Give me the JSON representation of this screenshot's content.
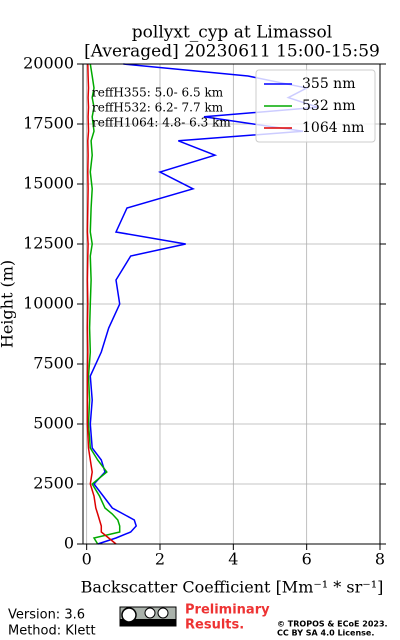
{
  "chart_data": {
    "type": "profile",
    "title": "pollyxt_cyp at Limassol",
    "subtitle": "[Averaged] 20230611 15:00-15:59",
    "xlabel": "Backscatter Coefficient [Mm⁻¹ * sr⁻¹]",
    "ylabel": "Height (m)",
    "y": [
      0,
      250,
      500,
      750,
      1000,
      1250,
      1500,
      2000,
      2500,
      3000,
      3500,
      4000,
      5000,
      6000,
      7000,
      8000,
      9000,
      10000,
      11000,
      12000,
      12500,
      13000,
      14000,
      14800,
      15500,
      16200,
      16800,
      17200,
      17800,
      18200,
      18600,
      19000,
      19500,
      20000
    ],
    "series": [
      {
        "name": "355 nm",
        "color": "#0000ff",
        "values": [
          0.3,
          0.8,
          1.2,
          1.35,
          1.3,
          1.0,
          0.7,
          0.45,
          0.2,
          0.5,
          0.4,
          0.15,
          0.1,
          0.15,
          0.1,
          0.4,
          0.6,
          0.9,
          0.8,
          1.2,
          2.7,
          0.8,
          1.1,
          2.9,
          2.0,
          3.5,
          2.5,
          5.9,
          3.2,
          6.3,
          5.5,
          6.0,
          4.4,
          1.0
        ]
      },
      {
        "name": "532 nm",
        "color": "#00aa00",
        "values": [
          0.3,
          0.2,
          0.9,
          0.9,
          0.85,
          0.7,
          0.5,
          0.35,
          0.15,
          0.55,
          0.3,
          0.1,
          0.05,
          0.08,
          0.05,
          0.1,
          0.08,
          0.1,
          0.12,
          0.1,
          0.15,
          0.1,
          0.12,
          0.15,
          0.1,
          0.15,
          0.12,
          0.2,
          0.15,
          0.2,
          0.15,
          0.2,
          0.15,
          0.1
        ]
      },
      {
        "name": "1064 nm",
        "color": "#dd0000",
        "values": [
          0.8,
          0.6,
          0.4,
          0.4,
          0.35,
          0.3,
          0.25,
          0.2,
          0.1,
          0.15,
          0.1,
          0.05,
          0.02,
          0.02,
          0.02,
          0.03,
          0.02,
          0.03,
          0.02,
          0.03,
          0.04,
          0.02,
          0.03,
          0.04,
          0.03,
          0.04,
          0.03,
          0.05,
          0.04,
          0.05,
          0.04,
          0.05,
          0.04,
          0.03
        ]
      }
    ],
    "annotations": [
      "reffH355:  5.0- 6.5 km",
      "reffH532:  6.2- 7.7 km",
      "reffH1064:  4.8- 6.3 km"
    ],
    "xlim": [
      -0.1,
      8
    ],
    "xticks": [
      0,
      2,
      4,
      6,
      8
    ],
    "ylim": [
      0,
      20000
    ],
    "yticks": [
      0,
      2500,
      5000,
      7500,
      10000,
      12500,
      15000,
      17500,
      20000
    ],
    "grid": true,
    "legend": "upper right"
  },
  "footer": {
    "version": "Version: 3.6",
    "method": "Method: Klett",
    "status_line1": "Preliminary",
    "status_line2": "Results.",
    "copyright": "© TROPOS & ECoE 2023.",
    "license": "CC BY SA 4.0 License."
  }
}
